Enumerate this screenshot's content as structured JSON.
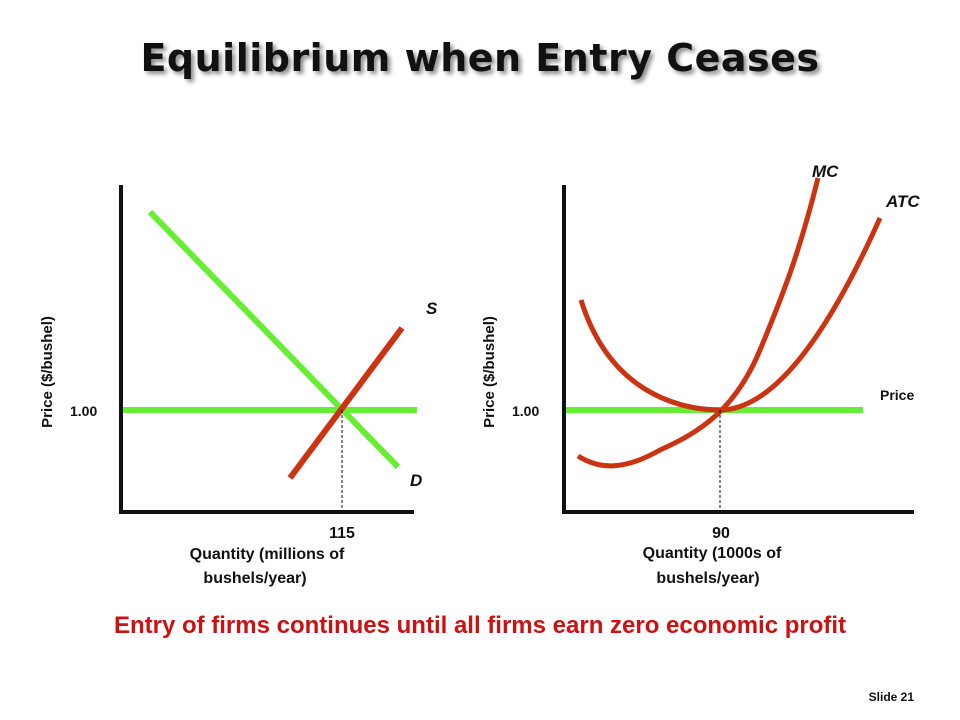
{
  "title": "Equilibrium when Entry Ceases",
  "colors": {
    "supply": "#cc3311",
    "demand": "#66ee33",
    "price_line": "#66ee33",
    "mc": "#cc3311",
    "atc": "#cc3311",
    "footer": "#cc1111"
  },
  "left": {
    "ylabel": "Price ($/bushel)",
    "price_tick": "1.00",
    "qty_tick": "115",
    "xlabel_line1": "Quantity (millions of",
    "xlabel_line2": "bushels/year)",
    "supply_label": "S",
    "demand_label": "D"
  },
  "right": {
    "ylabel": "Price ($/bushel)",
    "price_tick": "1.00",
    "qty_tick": "90",
    "xlabel_line1": "Quantity (1000s of",
    "xlabel_line2": "bushels/year)",
    "mc_label": "MC",
    "atc_label": "ATC",
    "price_label": "Price"
  },
  "footer": "Entry of firms continues until all firms earn zero economic profit",
  "slide": "Slide 21"
}
